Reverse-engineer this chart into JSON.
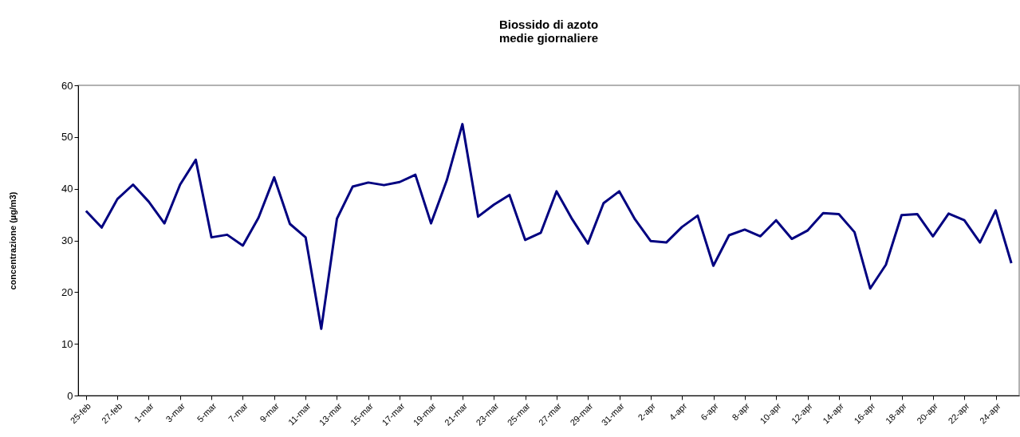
{
  "chart_data": {
    "type": "line",
    "title": "Biossido di azoto",
    "subtitle": "medie giornaliere",
    "ylabel": "concentrazione (µg/m3)",
    "categories": [
      "25-feb",
      null,
      "27-feb",
      null,
      "1-mar",
      null,
      "3-mar",
      null,
      "5-mar",
      null,
      "7-mar",
      null,
      "9-mar",
      null,
      "11-mar",
      null,
      "13-mar",
      null,
      "15-mar",
      null,
      "17-mar",
      null,
      "19-mar",
      null,
      "21-mar",
      null,
      "23-mar",
      null,
      "25-mar",
      null,
      "27-mar",
      null,
      "29-mar",
      null,
      "31-mar",
      null,
      "2-apr",
      null,
      "4-apr",
      null,
      "6-apr",
      null,
      "8-apr",
      null,
      "10-apr",
      null,
      "12-apr",
      null,
      "14-apr",
      null,
      "16-apr",
      null,
      "18-apr",
      null,
      "20-apr",
      null,
      "22-apr",
      null,
      "24-apr",
      null
    ],
    "series": [
      {
        "color": "#000080",
        "values": [
          35.7,
          32.5,
          38,
          40.8,
          37.5,
          33.3,
          40.8,
          45.6,
          30.6,
          31.1,
          29,
          34.4,
          42.2,
          33.2,
          30.6,
          12.9,
          34.2,
          40.4,
          41.2,
          40.7,
          41.3,
          42.7,
          33.3,
          41.6,
          52.5,
          34.6,
          36.9,
          38.8,
          30.1,
          31.5,
          39.5,
          34.1,
          29.4,
          37.2,
          39.5,
          34.1,
          29.9,
          29.6,
          32.6,
          34.8,
          25.1,
          31,
          32.1,
          30.8,
          33.9,
          30.3,
          31.9,
          35.3,
          35.1,
          31.6,
          20.7,
          25.3,
          34.9,
          35.1,
          30.8,
          35.2,
          33.9,
          29.6,
          35.8,
          25.6
        ]
      }
    ],
    "ylim": [
      0,
      60
    ],
    "yticks": [
      0,
      10,
      20,
      30,
      40,
      50,
      60
    ],
    "grid": false,
    "marker": "none",
    "line_style": "solid"
  }
}
